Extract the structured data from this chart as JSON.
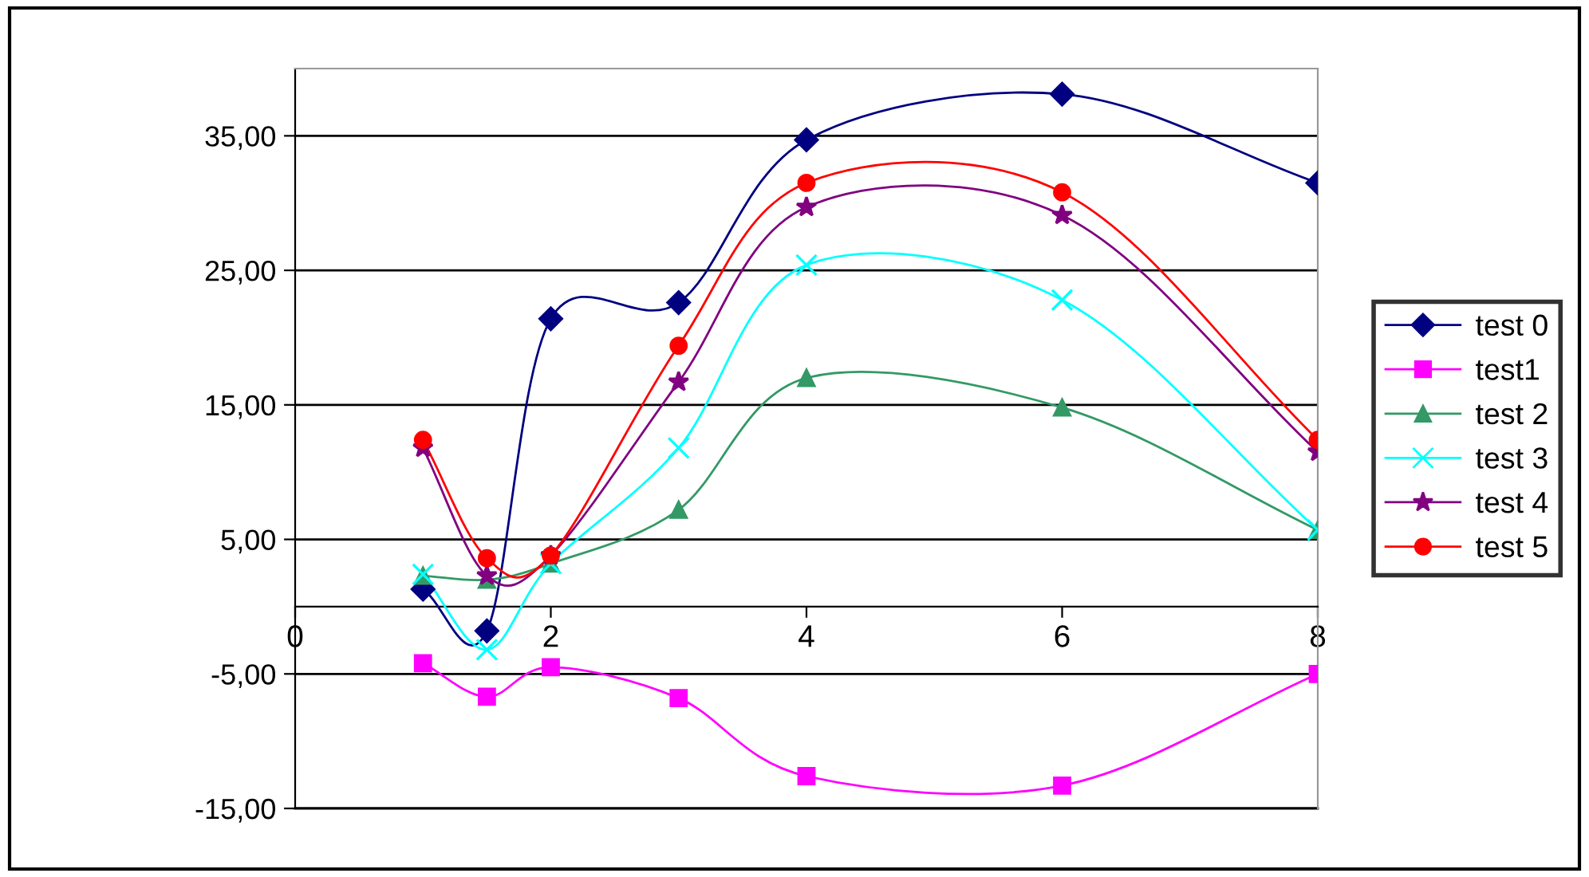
{
  "chart_data": {
    "type": "line",
    "x": [
      1,
      1.5,
      2,
      3,
      4,
      6,
      8
    ],
    "xlim": [
      0,
      8
    ],
    "xticks": [
      0,
      2,
      4,
      6,
      8
    ],
    "ylim": [
      -15,
      40
    ],
    "yticks": [
      {
        "value": -15,
        "label": "-15,00"
      },
      {
        "value": -5,
        "label": "-5,00"
      },
      {
        "value": 5,
        "label": "5,00"
      },
      {
        "value": 15,
        "label": "15,00"
      },
      {
        "value": 25,
        "label": "25,00"
      },
      {
        "value": 35,
        "label": "35,00"
      }
    ],
    "grid": "y",
    "legend": "right",
    "series": [
      {
        "name": "test 0",
        "color": "#000080",
        "marker": "diamond",
        "values": [
          1.3,
          -1.8,
          21.4,
          22.6,
          34.7,
          38.1,
          31.5
        ]
      },
      {
        "name": "test1",
        "color": "#ff00ff",
        "marker": "square",
        "values": [
          -4.2,
          -6.7,
          -4.5,
          -6.8,
          -12.6,
          -13.3,
          -5.0
        ]
      },
      {
        "name": "test 2",
        "color": "#339966",
        "marker": "triangle",
        "values": [
          2.3,
          2.0,
          3.2,
          7.2,
          17.0,
          14.8,
          5.7
        ]
      },
      {
        "name": "test 3",
        "color": "#00ffff",
        "marker": "cross",
        "values": [
          2.4,
          -3.2,
          3.2,
          11.8,
          25.4,
          22.8,
          5.7
        ]
      },
      {
        "name": "test 4",
        "color": "#800080",
        "marker": "star",
        "values": [
          11.8,
          2.3,
          3.8,
          16.7,
          29.7,
          29.1,
          11.5
        ]
      },
      {
        "name": "test 5",
        "color": "#ff0000",
        "marker": "circle",
        "values": [
          12.4,
          3.6,
          3.8,
          19.4,
          31.5,
          30.8,
          12.4
        ]
      }
    ]
  }
}
